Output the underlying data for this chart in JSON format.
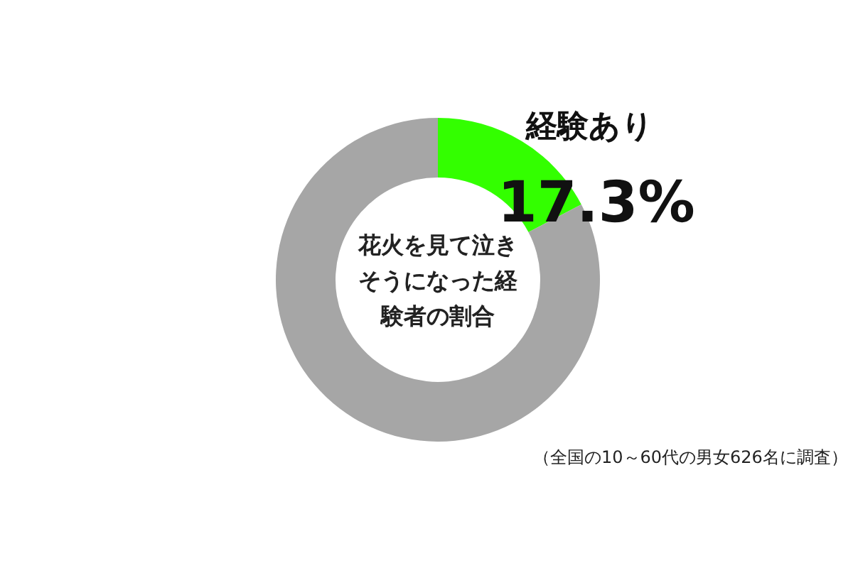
{
  "chart_data": {
    "type": "donut",
    "title": "花火を見て泣きそうになった経験者の割合",
    "categories": [
      "経験あり",
      null
    ],
    "values": [
      17.3,
      82.7
    ],
    "colors": [
      "#33ff00",
      "#a6a6a6"
    ],
    "value_labels": [
      "17.3%",
      null
    ],
    "annotations": [
      "（全国の10～60代の男女626名に調査）"
    ]
  }
}
